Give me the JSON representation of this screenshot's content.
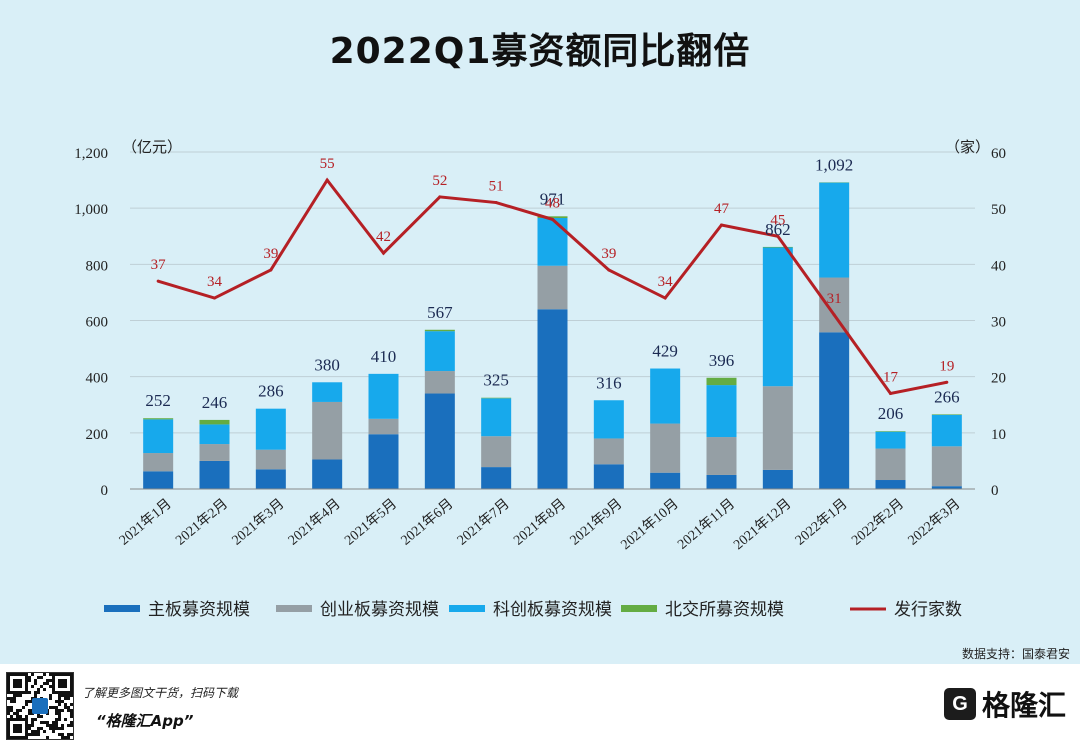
{
  "title": "2022Q1募资额同比翻倍",
  "chart_data": {
    "type": "bar",
    "stacked": true,
    "categories": [
      "2021年1月",
      "2021年2月",
      "2021年3月",
      "2021年4月",
      "2021年5月",
      "2021年6月",
      "2021年7月",
      "2021年8月",
      "2021年9月",
      "2021年10月",
      "2021年11月",
      "2021年12月",
      "2022年1月",
      "2022年2月",
      "2022年3月"
    ],
    "series": [
      {
        "name": "主板募资规模",
        "color": "#1a6fbd",
        "values": [
          63,
          100,
          70,
          105,
          195,
          340,
          78,
          640,
          88,
          58,
          50,
          68,
          558,
          32,
          10
        ]
      },
      {
        "name": "创业板募资规模",
        "color": "#959fa5",
        "values": [
          65,
          60,
          70,
          205,
          55,
          80,
          110,
          155,
          92,
          175,
          135,
          298,
          195,
          112,
          142
        ]
      },
      {
        "name": "科创板募资规模",
        "color": "#17a9ec",
        "values": [
          120,
          70,
          146,
          70,
          160,
          142,
          135,
          170,
          136,
          196,
          185,
          494,
          338,
          60,
          112
        ]
      },
      {
        "name": "北交所募资规模",
        "color": "#64ac43",
        "values": [
          4,
          16,
          0,
          0,
          0,
          5,
          2,
          6,
          0,
          0,
          26,
          2,
          1,
          2,
          2
        ]
      }
    ],
    "totals": [
      252,
      246,
      286,
      380,
      410,
      567,
      325,
      971,
      316,
      429,
      396,
      862,
      1092,
      206,
      266
    ],
    "total_labels": [
      "252",
      "246",
      "286",
      "380",
      "410",
      "567",
      "325",
      "971",
      "316",
      "429",
      "396",
      "862",
      "1,092",
      "206",
      "266"
    ],
    "line": {
      "name": "发行家数",
      "color": "#b52025",
      "values": [
        37,
        34,
        39,
        55,
        42,
        52,
        51,
        48,
        39,
        34,
        47,
        45,
        31,
        17,
        19
      ]
    },
    "y_left": {
      "label": "（亿元）",
      "min": 0,
      "max": 1200,
      "ticks": [
        0,
        200,
        400,
        600,
        800,
        1000,
        1200
      ],
      "tick_labels": [
        "0",
        "200",
        "400",
        "600",
        "800",
        "1,000",
        "1,200"
      ]
    },
    "y_right": {
      "label": "（家）",
      "min": 0,
      "max": 60,
      "ticks": [
        0,
        10,
        20,
        30,
        40,
        50,
        60
      ]
    },
    "legend_position": "bottom"
  },
  "source": "数据支持：国泰君安",
  "footer": {
    "tip": "了解更多图文干货，扫码下载",
    "app": "“格隆汇App”",
    "logo_text": "格隆汇",
    "logo_mark": "G"
  }
}
